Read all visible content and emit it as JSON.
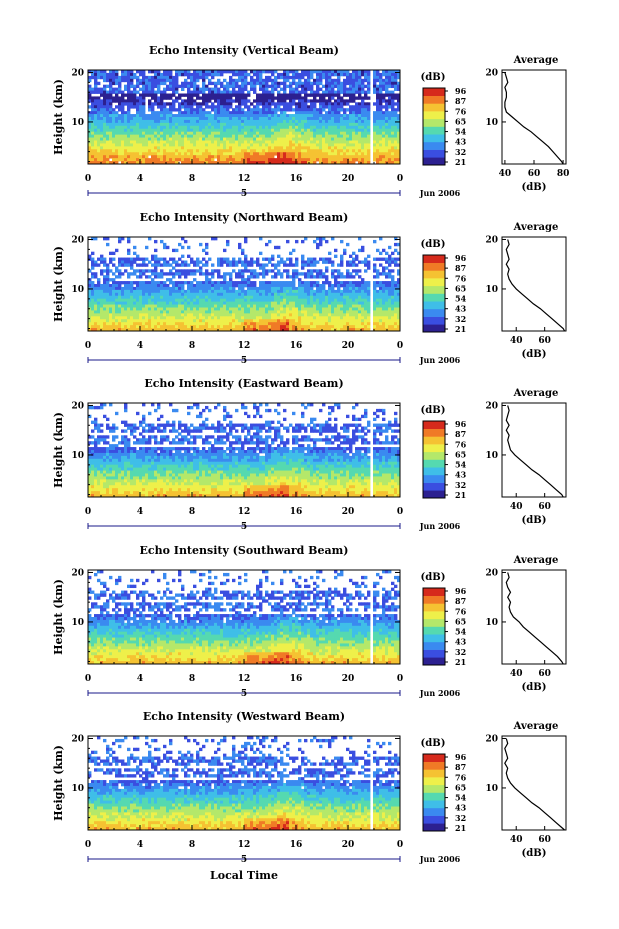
{
  "figure": {
    "x_axis_label": "Local Time",
    "date_label": "Jun 2006",
    "day_label": "5",
    "colorbar_unit": "(dB)",
    "colorbar_ticks": [
      "96",
      "87",
      "76",
      "65",
      "54",
      "43",
      "32",
      "21"
    ],
    "colorbar_colors": [
      "#ffffff",
      "#d62a1c",
      "#f07a26",
      "#f5c232",
      "#eef04a",
      "#b4e86a",
      "#55d9b0",
      "#3fbee8",
      "#3a8af0",
      "#3a4ee0",
      "#2c2090"
    ]
  },
  "chart_data": [
    {
      "type": "heatmap",
      "title": "Echo Intensity (Vertical Beam)",
      "xlabel": "Local Time",
      "ylabel": "Height (km)",
      "xlim": [
        0,
        24
      ],
      "ylim": [
        1.5,
        20.5
      ],
      "x_ticks": [
        "0",
        "4",
        "8",
        "12",
        "16",
        "20",
        "0"
      ],
      "y_ticks": [
        "10",
        "20"
      ],
      "colorbar": {
        "label": "(dB)",
        "ticks": [
          96,
          87,
          76,
          65,
          54,
          43,
          32,
          21
        ]
      },
      "data_gap_hours": [
        21.6,
        21.9
      ],
      "profile": {
        "title": "Average",
        "xlabel": "(dB)",
        "ylabel": "Height (km)",
        "xlim": [
          38,
          82
        ],
        "x_ticks": [
          "40",
          "60",
          "80"
        ],
        "y_ticks": [
          "10",
          "20"
        ],
        "heights": [
          1.5,
          2,
          3,
          4,
          5,
          6,
          7,
          8,
          9,
          10,
          11,
          12,
          13,
          14,
          15,
          16,
          17,
          18,
          19,
          20
        ],
        "values": [
          80,
          79,
          76,
          73,
          70,
          66,
          62,
          58,
          53,
          49,
          45,
          41,
          40,
          40,
          41,
          41,
          40,
          42,
          41,
          40
        ]
      }
    },
    {
      "type": "heatmap",
      "title": "Echo Intensity (Northward Beam)",
      "xlabel": "Local Time",
      "ylabel": "Height (km)",
      "xlim": [
        0,
        24
      ],
      "ylim": [
        1.5,
        20.5
      ],
      "x_ticks": [
        "0",
        "4",
        "8",
        "12",
        "16",
        "20",
        "0"
      ],
      "y_ticks": [
        "10",
        "20"
      ],
      "colorbar": {
        "label": "(dB)",
        "ticks": [
          96,
          87,
          76,
          65,
          54,
          43,
          32,
          21
        ]
      },
      "data_gap_hours": [
        21.6,
        21.9
      ],
      "profile": {
        "title": "Average",
        "xlabel": "(dB)",
        "ylabel": "Height (km)",
        "xlim": [
          30,
          75
        ],
        "x_ticks": [
          "40",
          "60"
        ],
        "y_ticks": [
          "10",
          "20"
        ],
        "heights": [
          1.5,
          2,
          3,
          4,
          5,
          6,
          7,
          8,
          9,
          10,
          11,
          12,
          13,
          14,
          15,
          16,
          17,
          18,
          19,
          20
        ],
        "values": [
          74,
          73,
          69,
          65,
          61,
          57,
          52,
          48,
          44,
          40,
          37,
          35,
          34,
          35,
          33,
          35,
          34,
          33,
          35,
          34
        ]
      }
    },
    {
      "type": "heatmap",
      "title": "Echo Intensity (Eastward Beam)",
      "xlabel": "Local Time",
      "ylabel": "Height (km)",
      "xlim": [
        0,
        24
      ],
      "ylim": [
        1.5,
        20.5
      ],
      "x_ticks": [
        "0",
        "4",
        "8",
        "12",
        "16",
        "20",
        "0"
      ],
      "y_ticks": [
        "10",
        "20"
      ],
      "colorbar": {
        "label": "(dB)",
        "ticks": [
          96,
          87,
          76,
          65,
          54,
          43,
          32,
          21
        ]
      },
      "data_gap_hours": [
        21.6,
        21.9
      ],
      "profile": {
        "title": "Average",
        "xlabel": "(dB)",
        "ylabel": "Height (km)",
        "xlim": [
          30,
          75
        ],
        "x_ticks": [
          "40",
          "60"
        ],
        "y_ticks": [
          "10",
          "20"
        ],
        "heights": [
          1.5,
          2,
          3,
          4,
          5,
          6,
          7,
          8,
          9,
          10,
          11,
          12,
          13,
          14,
          15,
          16,
          17,
          18,
          19,
          20
        ],
        "values": [
          73,
          72,
          68,
          64,
          60,
          56,
          51,
          47,
          43,
          39,
          36,
          35,
          34,
          35,
          33,
          35,
          33,
          34,
          35,
          34
        ]
      }
    },
    {
      "type": "heatmap",
      "title": "Echo Intensity (Southward Beam)",
      "xlabel": "Local Time",
      "ylabel": "Height (km)",
      "xlim": [
        0,
        24
      ],
      "ylim": [
        1.5,
        20.5
      ],
      "x_ticks": [
        "0",
        "4",
        "8",
        "12",
        "16",
        "20",
        "0"
      ],
      "y_ticks": [
        "10",
        "20"
      ],
      "colorbar": {
        "label": "(dB)",
        "ticks": [
          96,
          87,
          76,
          65,
          54,
          43,
          32,
          21
        ]
      },
      "data_gap_hours": [
        21.6,
        21.9
      ],
      "profile": {
        "title": "Average",
        "xlabel": "(dB)",
        "ylabel": "Height (km)",
        "xlim": [
          30,
          75
        ],
        "x_ticks": [
          "40",
          "60"
        ],
        "y_ticks": [
          "10",
          "20"
        ],
        "heights": [
          1.5,
          2,
          3,
          4,
          5,
          6,
          7,
          8,
          9,
          10,
          11,
          12,
          13,
          14,
          15,
          16,
          17,
          18,
          19,
          20
        ],
        "values": [
          73,
          72,
          69,
          65,
          61,
          57,
          53,
          49,
          45,
          42,
          38,
          36,
          35,
          36,
          34,
          36,
          34,
          33,
          35,
          34
        ]
      }
    },
    {
      "type": "heatmap",
      "title": "Echo Intensity (Westward Beam)",
      "xlabel": "Local Time",
      "ylabel": "Height (km)",
      "xlim": [
        0,
        24
      ],
      "ylim": [
        1.5,
        20.5
      ],
      "x_ticks": [
        "0",
        "4",
        "8",
        "12",
        "16",
        "20",
        "0"
      ],
      "y_ticks": [
        "10",
        "20"
      ],
      "colorbar": {
        "label": "(dB)",
        "ticks": [
          96,
          87,
          76,
          65,
          54,
          43,
          32,
          21
        ]
      },
      "data_gap_hours": [
        21.6,
        21.9
      ],
      "profile": {
        "title": "Average",
        "xlabel": "(dB)",
        "ylabel": "Height (km)",
        "xlim": [
          30,
          75
        ],
        "x_ticks": [
          "40",
          "60"
        ],
        "y_ticks": [
          "10",
          "20"
        ],
        "heights": [
          1.5,
          2,
          3,
          4,
          5,
          6,
          7,
          8,
          9,
          10,
          11,
          12,
          13,
          14,
          15,
          16,
          17,
          18,
          19,
          20
        ],
        "values": [
          74,
          72,
          68,
          64,
          60,
          56,
          51,
          47,
          43,
          39,
          36,
          34,
          33,
          34,
          32,
          34,
          33,
          32,
          34,
          33
        ]
      }
    }
  ]
}
